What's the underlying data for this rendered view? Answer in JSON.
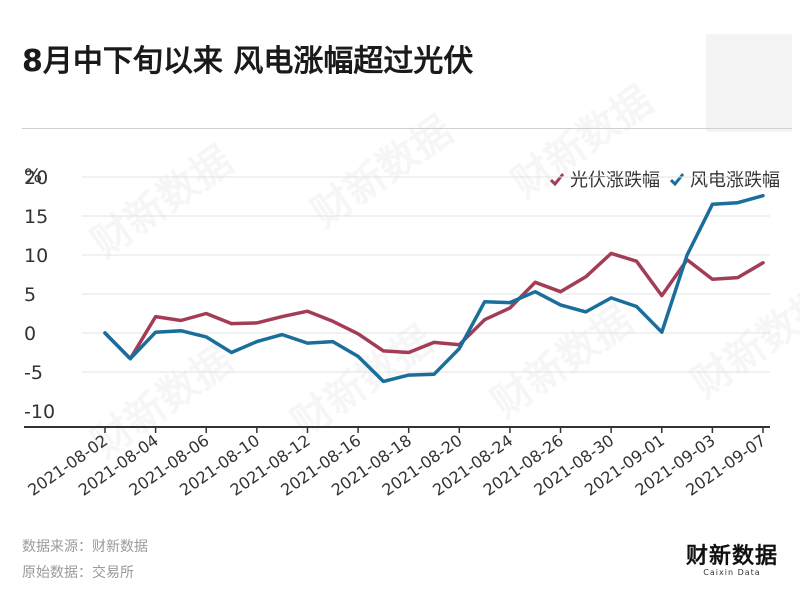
{
  "title": "8月中下旬以来 风电涨幅超过光伏",
  "unit_label": "%",
  "source_line_1": "数据来源：财新数据",
  "source_line_2": "原始数据：交易所",
  "brand": {
    "name": "财新数据",
    "sub": "Caixin Data"
  },
  "watermark_text": "财新数据",
  "colors": {
    "solar": "#a33d55",
    "wind": "#1a6e9c",
    "grid": "#e3e3e3",
    "axis": "#333333"
  },
  "chart_data": {
    "type": "line",
    "title": "8月中下旬以来 风电涨幅超过光伏",
    "xlabel": "",
    "ylabel": "%",
    "ylim": [
      -10,
      20
    ],
    "yticks": [
      -10,
      -5,
      0,
      5,
      10,
      15,
      20
    ],
    "grid": true,
    "legend_position": "top-right",
    "x": [
      "2021-08-02",
      "2021-08-03",
      "2021-08-04",
      "2021-08-05",
      "2021-08-06",
      "2021-08-09",
      "2021-08-10",
      "2021-08-11",
      "2021-08-12",
      "2021-08-13",
      "2021-08-16",
      "2021-08-17",
      "2021-08-18",
      "2021-08-19",
      "2021-08-20",
      "2021-08-23",
      "2021-08-24",
      "2021-08-25",
      "2021-08-26",
      "2021-08-27",
      "2021-08-30",
      "2021-08-31",
      "2021-09-01",
      "2021-09-02",
      "2021-09-03",
      "2021-09-06",
      "2021-09-07"
    ],
    "x_tick_labels": [
      "2021-08-02",
      "2021-08-04",
      "2021-08-06",
      "2021-08-10",
      "2021-08-12",
      "2021-08-16",
      "2021-08-18",
      "2021-08-20",
      "2021-08-24",
      "2021-08-26",
      "2021-08-30",
      "2021-09-01",
      "2021-09-03",
      "2021-09-07"
    ],
    "series": [
      {
        "name": "光伏涨跌幅",
        "color": "#a33d55",
        "values": [
          0,
          -3.3,
          2.1,
          1.6,
          2.5,
          1.2,
          1.3,
          2.1,
          2.8,
          1.5,
          -0.1,
          -2.3,
          -2.5,
          -1.2,
          -1.5,
          1.7,
          3.2,
          6.5,
          5.3,
          7.2,
          10.2,
          9.2,
          4.8,
          9.4,
          6.9,
          7.1,
          9.0
        ]
      },
      {
        "name": "风电涨跌幅",
        "color": "#1a6e9c",
        "values": [
          0,
          -3.3,
          0.1,
          0.3,
          -0.5,
          -2.5,
          -1.1,
          -0.2,
          -1.3,
          -1.1,
          -3.0,
          -6.2,
          -5.4,
          -5.3,
          -2.0,
          4.0,
          3.9,
          5.3,
          3.6,
          2.7,
          4.5,
          3.4,
          0.1,
          10.0,
          16.5,
          16.7,
          17.6
        ]
      }
    ]
  }
}
